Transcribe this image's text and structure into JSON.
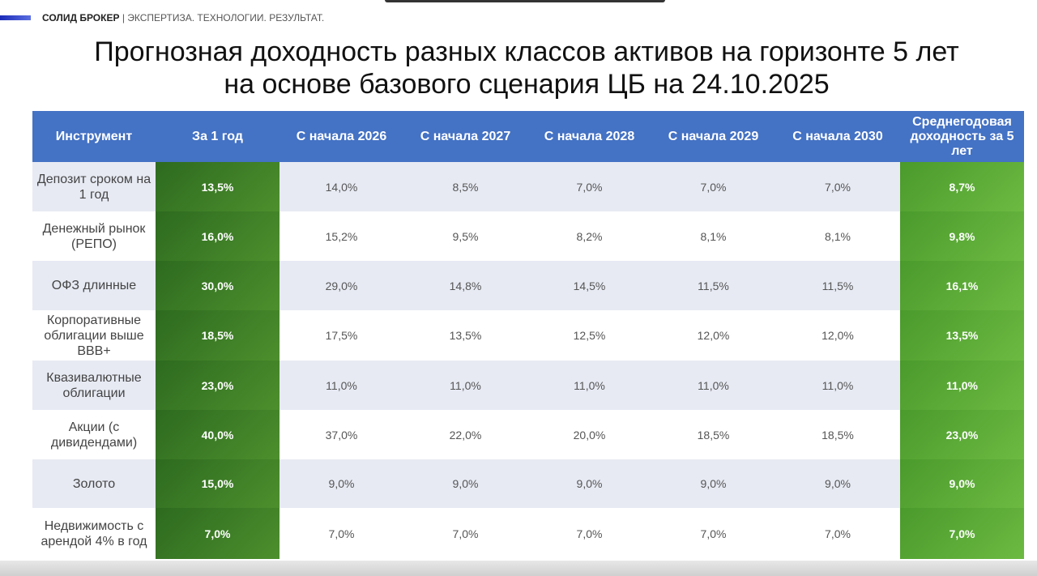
{
  "header": {
    "brand": "СОЛИД БРОКЕР",
    "tagline": "| ЭКСПЕРТИЗА. ТЕХНОЛОГИИ. РЕЗУЛЬТАТ."
  },
  "title": {
    "lines": [
      "Прогнозная доходность разных классов активов на горизонте 5 лет",
      "на основе базового сценария ЦБ на 24.10.2025"
    ]
  },
  "table": {
    "columns": [
      "Инструмент",
      "За 1 год",
      "С начала 2026",
      "С начала 2027",
      "С начала 2028",
      "С начала 2029",
      "С начала 2030",
      "Среднегодовая доходность за 5 лет"
    ],
    "rows": [
      [
        "Депозит сроком на 1 год",
        "13,5%",
        "14,0%",
        "8,5%",
        "7,0%",
        "7,0%",
        "7,0%",
        "8,7%"
      ],
      [
        "Денежный рынок (РЕПО)",
        "16,0%",
        "15,2%",
        "9,5%",
        "8,2%",
        "8,1%",
        "8,1%",
        "9,8%"
      ],
      [
        "ОФЗ длинные",
        "30,0%",
        "29,0%",
        "14,8%",
        "14,5%",
        "11,5%",
        "11,5%",
        "16,1%"
      ],
      [
        "Корпоративные облигации выше BBB+",
        "18,5%",
        "17,5%",
        "13,5%",
        "12,5%",
        "12,0%",
        "12,0%",
        "13,5%"
      ],
      [
        "Квазивалютные облигации",
        "23,0%",
        "11,0%",
        "11,0%",
        "11,0%",
        "11,0%",
        "11,0%",
        "11,0%"
      ],
      [
        "Акции (с дивидендами)",
        "40,0%",
        "37,0%",
        "22,0%",
        "20,0%",
        "18,5%",
        "18,5%",
        "23,0%"
      ],
      [
        "Золото",
        "15,0%",
        "9,0%",
        "9,0%",
        "9,0%",
        "9,0%",
        "9,0%",
        "9,0%"
      ],
      [
        "Недвижимость с арендой 4% в год",
        "7,0%",
        "7,0%",
        "7,0%",
        "7,0%",
        "7,0%",
        "7,0%",
        "7,0%"
      ]
    ]
  }
}
